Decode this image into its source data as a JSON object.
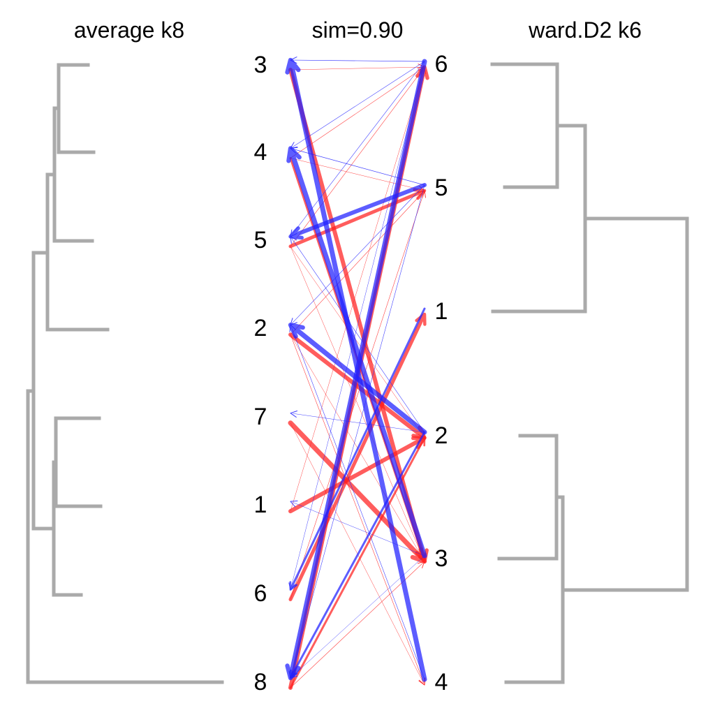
{
  "colors": {
    "dendrogram": "#aaaaaa",
    "left_to_right": "#ff2020",
    "right_to_left": "#2020ff",
    "background": "#ffffff",
    "text": "#000000"
  },
  "left_panel": {
    "title": "average k8",
    "leaf_labels": [
      "3",
      "4",
      "5",
      "2",
      "7",
      "1",
      "6",
      "8"
    ]
  },
  "middle": {
    "title": "sim=0.90"
  },
  "right_panel": {
    "title": "ward.D2 k6",
    "leaf_labels": [
      "6",
      "5",
      "1",
      "2",
      "3",
      "4"
    ]
  },
  "flows_left_to_right": [
    {
      "from": "3",
      "to": "6",
      "weight": 0.5
    },
    {
      "from": "3",
      "to": "3",
      "weight": 6
    },
    {
      "from": "4",
      "to": "6",
      "weight": 0.6
    },
    {
      "from": "4",
      "to": "5",
      "weight": 0.5
    },
    {
      "from": "4",
      "to": "3",
      "weight": 3
    },
    {
      "from": "5",
      "to": "5",
      "weight": 5
    },
    {
      "from": "5",
      "to": "6",
      "weight": 0.6
    },
    {
      "from": "5",
      "to": "2",
      "weight": 0.5
    },
    {
      "from": "5",
      "to": "3",
      "weight": 0.5
    },
    {
      "from": "2",
      "to": "2",
      "weight": 6
    },
    {
      "from": "2",
      "to": "5",
      "weight": 0.6
    },
    {
      "from": "2",
      "to": "4",
      "weight": 0.6
    },
    {
      "from": "2",
      "to": "3",
      "weight": 0.5
    },
    {
      "from": "7",
      "to": "3",
      "weight": 7
    },
    {
      "from": "7",
      "to": "4",
      "weight": 0.5
    },
    {
      "from": "1",
      "to": "2",
      "weight": 6
    },
    {
      "from": "1",
      "to": "6",
      "weight": 0.5
    },
    {
      "from": "6",
      "to": "1",
      "weight": 5
    },
    {
      "from": "6",
      "to": "5",
      "weight": 0.6
    },
    {
      "from": "8",
      "to": "6",
      "weight": 6
    },
    {
      "from": "8",
      "to": "2",
      "weight": 3
    },
    {
      "from": "8",
      "to": "3",
      "weight": 0.6
    }
  ],
  "flows_right_to_left": [
    {
      "from": "6",
      "to": "3",
      "weight": 0.7
    },
    {
      "from": "6",
      "to": "4",
      "weight": 0.6
    },
    {
      "from": "6",
      "to": "5",
      "weight": 0.6
    },
    {
      "from": "6",
      "to": "6",
      "weight": 0.5
    },
    {
      "from": "6",
      "to": "8",
      "weight": 7
    },
    {
      "from": "5",
      "to": "5",
      "weight": 6
    },
    {
      "from": "5",
      "to": "4",
      "weight": 0.7
    },
    {
      "from": "5",
      "to": "2",
      "weight": 0.6
    },
    {
      "from": "5",
      "to": "8",
      "weight": 0.6
    },
    {
      "from": "1",
      "to": "6",
      "weight": 3
    },
    {
      "from": "2",
      "to": "2",
      "weight": 7
    },
    {
      "from": "2",
      "to": "5",
      "weight": 0.6
    },
    {
      "from": "2",
      "to": "7",
      "weight": 0.5
    },
    {
      "from": "2",
      "to": "8",
      "weight": 3
    },
    {
      "from": "3",
      "to": "4",
      "weight": 7
    },
    {
      "from": "3",
      "to": "1",
      "weight": 0.5
    },
    {
      "from": "3",
      "to": "8",
      "weight": 0.5
    },
    {
      "from": "4",
      "to": "3",
      "weight": 7
    },
    {
      "from": "4",
      "to": "2",
      "weight": 0.6
    }
  ]
}
